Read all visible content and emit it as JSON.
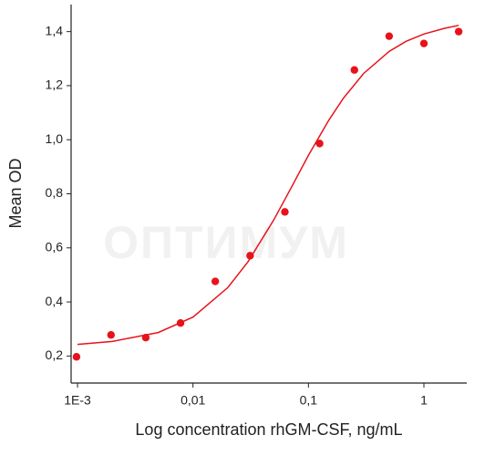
{
  "chart_data": {
    "type": "scatter",
    "watermark": "ОПТИМУМ",
    "x_label": "Log concentration rhGM-CSF, ng/mL",
    "y_label": "Mean OD",
    "x_scale": "log",
    "xlim": [
      0.00088,
      2.35
    ],
    "ylim": [
      0.1,
      1.5
    ],
    "xticks": [
      {
        "value": 0.001,
        "label": "1E-3"
      },
      {
        "value": 0.01,
        "label": "0,01"
      },
      {
        "value": 0.1,
        "label": "0,1"
      },
      1
    ],
    "yticks": [
      {
        "value": 0.2,
        "label": "0,2"
      },
      {
        "value": 0.4,
        "label": "0,4"
      },
      {
        "value": 0.6,
        "label": "0,6"
      },
      {
        "value": 0.8,
        "label": "0,8"
      },
      {
        "value": 1.0,
        "label": "1,0"
      },
      {
        "value": 1.2,
        "label": "1,2"
      },
      {
        "value": 1.4,
        "label": "1,4"
      }
    ],
    "series": [
      {
        "type": "scatter",
        "color": "#e8121b",
        "x": [
          0.00098,
          0.00195,
          0.0039,
          0.0078,
          0.0156,
          0.03125,
          0.0625,
          0.125,
          0.25,
          0.5,
          1,
          2
        ],
        "values": [
          0.197,
          0.278,
          0.268,
          0.322,
          0.476,
          0.571,
          0.733,
          0.986,
          1.258,
          1.383,
          1.356,
          1.4
        ]
      },
      {
        "type": "line",
        "color": "#e8121b",
        "x": [
          0.001,
          0.002,
          0.005,
          0.01,
          0.02,
          0.03,
          0.05,
          0.07,
          0.1,
          0.15,
          0.2,
          0.3,
          0.5,
          0.7,
          1,
          1.5,
          2
        ],
        "values": [
          0.243,
          0.254,
          0.287,
          0.344,
          0.453,
          0.549,
          0.703,
          0.818,
          0.942,
          1.072,
          1.153,
          1.245,
          1.327,
          1.364,
          1.391,
          1.412,
          1.423
        ]
      }
    ]
  }
}
